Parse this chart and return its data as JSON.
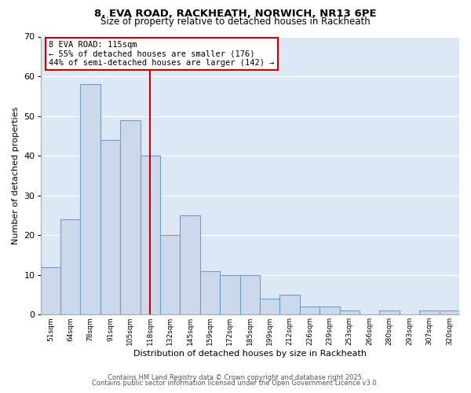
{
  "title_line1": "8, EVA ROAD, RACKHEATH, NORWICH, NR13 6PE",
  "title_line2": "Size of property relative to detached houses in Rackheath",
  "xlabel": "Distribution of detached houses by size in Rackheath",
  "ylabel": "Number of detached properties",
  "bar_labels": [
    "51sqm",
    "64sqm",
    "78sqm",
    "91sqm",
    "105sqm",
    "118sqm",
    "132sqm",
    "145sqm",
    "159sqm",
    "172sqm",
    "185sqm",
    "199sqm",
    "212sqm",
    "226sqm",
    "239sqm",
    "253sqm",
    "266sqm",
    "280sqm",
    "293sqm",
    "307sqm",
    "320sqm"
  ],
  "bar_values": [
    12,
    24,
    58,
    44,
    49,
    40,
    20,
    25,
    11,
    10,
    10,
    4,
    5,
    2,
    2,
    1,
    0,
    1,
    0,
    1,
    1
  ],
  "bar_color": "#ccd9ed",
  "bar_edge_color": "#6b9ec8",
  "ylim": [
    0,
    70
  ],
  "yticks": [
    0,
    10,
    20,
    30,
    40,
    50,
    60,
    70
  ],
  "vline_x_idx": 5,
  "vline_color": "#cc0000",
  "annotation_title": "8 EVA ROAD: 115sqm",
  "annotation_line1": "← 55% of detached houses are smaller (176)",
  "annotation_line2": "44% of semi-detached houses are larger (142) →",
  "annotation_box_color": "#cc0000",
  "plot_bg_color": "#dce8f5",
  "fig_bg_color": "#ffffff",
  "footer_line1": "Contains HM Land Registry data © Crown copyright and database right 2025.",
  "footer_line2": "Contains public sector information licensed under the Open Government Licence v3.0."
}
